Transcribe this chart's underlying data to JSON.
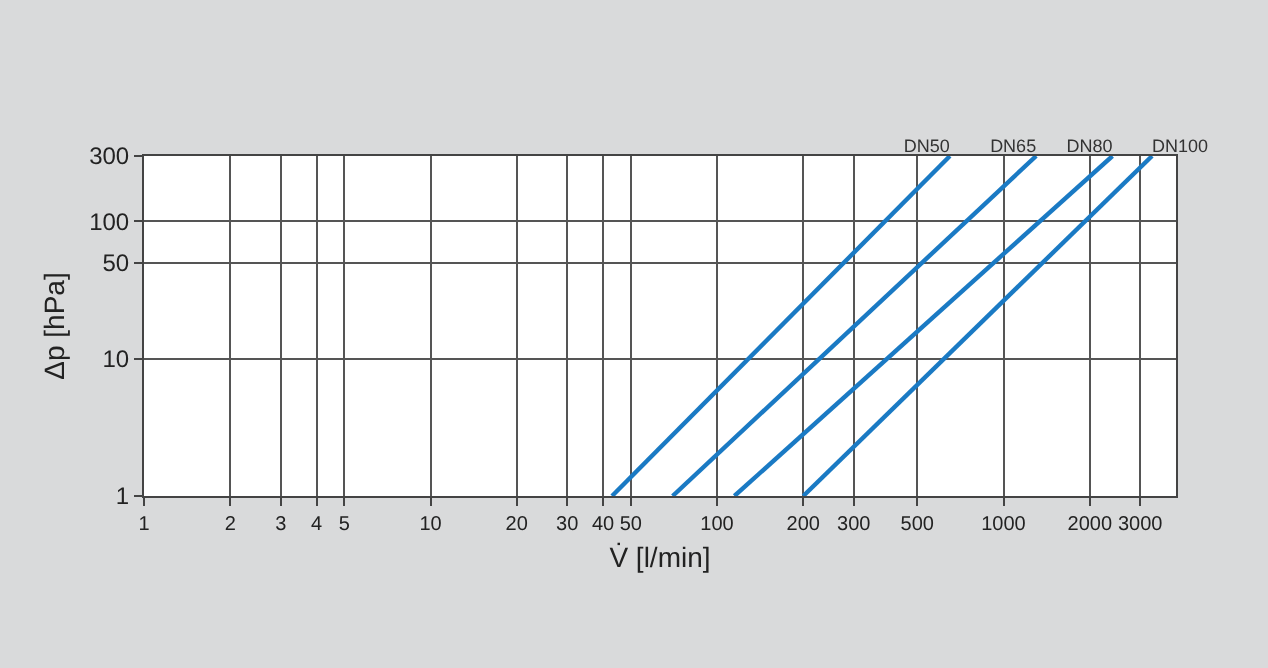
{
  "chart_data": {
    "type": "line",
    "xlabel": "V̇ [l/min]",
    "ylabel": "Δp [hPa]",
    "log": "xy",
    "grid": true,
    "legend": false,
    "marker": "none",
    "line_style": "solid",
    "xlim": [
      1,
      4000
    ],
    "ylim": [
      1,
      300
    ],
    "xticks": [
      1,
      2,
      3,
      4,
      5,
      10,
      20,
      30,
      40,
      50,
      100,
      200,
      300,
      500,
      1000,
      2000,
      3000
    ],
    "yticks": [
      1,
      10,
      50,
      100,
      300
    ],
    "series": [
      {
        "name": "DN50",
        "color": "#1a7ac4",
        "x": [
          43,
          650
        ],
        "values": [
          1,
          300
        ]
      },
      {
        "name": "DN65",
        "color": "#1a7ac4",
        "x": [
          70,
          1300
        ],
        "values": [
          1,
          300
        ]
      },
      {
        "name": "DN80",
        "color": "#1a7ac4",
        "x": [
          115,
          2400
        ],
        "values": [
          1,
          300
        ]
      },
      {
        "name": "DN100",
        "color": "#1a7ac4",
        "x": [
          200,
          3300
        ],
        "values": [
          1,
          300
        ]
      }
    ]
  }
}
